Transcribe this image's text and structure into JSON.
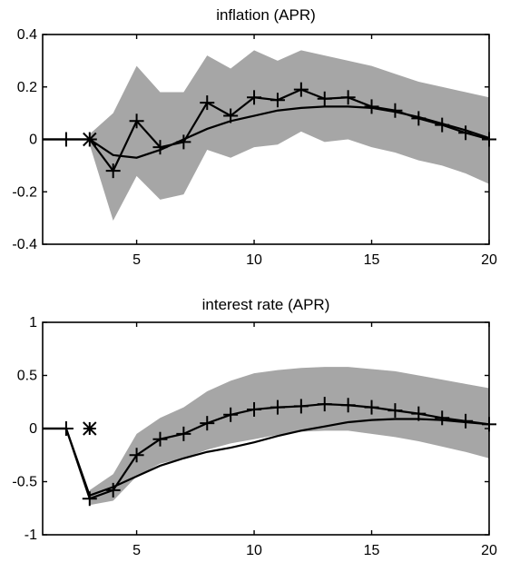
{
  "chart_data": [
    {
      "type": "line",
      "title": "inflation (APR)",
      "xlim": [
        1,
        20
      ],
      "ylim": [
        -0.4,
        0.4
      ],
      "xticks": [
        5,
        10,
        15,
        20
      ],
      "yticks": [
        -0.4,
        -0.2,
        0,
        0.2,
        0.4
      ],
      "ytick_labels": [
        "-0.4",
        "-0.2",
        "0",
        "0.2",
        "0.4"
      ],
      "band": {
        "x": [
          3,
          4,
          5,
          6,
          7,
          8,
          9,
          10,
          11,
          12,
          13,
          14,
          15,
          16,
          17,
          18,
          19,
          20
        ],
        "lower": [
          -0.02,
          -0.31,
          -0.14,
          -0.23,
          -0.21,
          -0.04,
          -0.07,
          -0.03,
          -0.02,
          0.03,
          -0.01,
          0.0,
          -0.03,
          -0.05,
          -0.08,
          -0.1,
          -0.13,
          -0.17
        ],
        "upper": [
          0.02,
          0.1,
          0.28,
          0.18,
          0.18,
          0.32,
          0.27,
          0.34,
          0.3,
          0.34,
          0.32,
          0.3,
          0.28,
          0.25,
          0.22,
          0.2,
          0.18,
          0.16
        ]
      },
      "series": [
        {
          "values": [
            [
              1,
              0
            ],
            [
              2,
              0
            ],
            [
              3,
              0
            ],
            [
              4,
              -0.06
            ],
            [
              5,
              -0.07
            ],
            [
              6,
              -0.04
            ],
            [
              7,
              0.0
            ],
            [
              8,
              0.04
            ],
            [
              9,
              0.07
            ],
            [
              10,
              0.09
            ],
            [
              11,
              0.11
            ],
            [
              12,
              0.12
            ],
            [
              13,
              0.125
            ],
            [
              14,
              0.125
            ],
            [
              15,
              0.12
            ],
            [
              16,
              0.105
            ],
            [
              17,
              0.085
            ],
            [
              18,
              0.06
            ],
            [
              19,
              0.035
            ],
            [
              20,
              0.005
            ]
          ],
          "markers": false
        },
        {
          "values": [
            [
              1,
              0
            ],
            [
              2,
              0
            ],
            [
              3,
              0
            ],
            [
              4,
              -0.12
            ],
            [
              5,
              0.07
            ],
            [
              6,
              -0.03
            ],
            [
              7,
              -0.01
            ],
            [
              8,
              0.14
            ],
            [
              9,
              0.09
            ],
            [
              10,
              0.16
            ],
            [
              11,
              0.15
            ],
            [
              12,
              0.19
            ],
            [
              13,
              0.155
            ],
            [
              14,
              0.16
            ],
            [
              15,
              0.125
            ],
            [
              16,
              0.11
            ],
            [
              17,
              0.08
            ],
            [
              18,
              0.055
            ],
            [
              19,
              0.025
            ],
            [
              20,
              0.0
            ]
          ],
          "markers": true,
          "marker_start": 2,
          "extra_markers": [
            [
              3,
              0,
              "x"
            ]
          ]
        }
      ]
    },
    {
      "type": "line",
      "title": "interest rate (APR)",
      "xlim": [
        1,
        20
      ],
      "ylim": [
        -1,
        1
      ],
      "xticks": [
        5,
        10,
        15,
        20
      ],
      "yticks": [
        -1,
        -0.5,
        0,
        0.5,
        1
      ],
      "ytick_labels": [
        "-1",
        "-0.5",
        "0",
        "0.5",
        "1"
      ],
      "band": {
        "x": [
          3,
          4,
          5,
          6,
          7,
          8,
          9,
          10,
          11,
          12,
          13,
          14,
          15,
          16,
          17,
          18,
          19,
          20
        ],
        "lower": [
          -0.72,
          -0.68,
          -0.45,
          -0.33,
          -0.28,
          -0.2,
          -0.14,
          -0.1,
          -0.06,
          -0.03,
          -0.02,
          -0.02,
          -0.05,
          -0.08,
          -0.12,
          -0.17,
          -0.22,
          -0.28
        ],
        "upper": [
          -0.58,
          -0.43,
          -0.05,
          0.1,
          0.2,
          0.35,
          0.45,
          0.52,
          0.55,
          0.57,
          0.58,
          0.58,
          0.56,
          0.54,
          0.5,
          0.46,
          0.42,
          0.38
        ]
      },
      "series": [
        {
          "values": [
            [
              1,
              0
            ],
            [
              2,
              0
            ],
            [
              3,
              -0.63
            ],
            [
              4,
              -0.55
            ],
            [
              5,
              -0.45
            ],
            [
              6,
              -0.35
            ],
            [
              7,
              -0.28
            ],
            [
              8,
              -0.22
            ],
            [
              9,
              -0.18
            ],
            [
              10,
              -0.13
            ],
            [
              11,
              -0.07
            ],
            [
              12,
              -0.02
            ],
            [
              13,
              0.02
            ],
            [
              14,
              0.06
            ],
            [
              15,
              0.08
            ],
            [
              16,
              0.09
            ],
            [
              17,
              0.09
            ],
            [
              18,
              0.08
            ],
            [
              19,
              0.06
            ],
            [
              20,
              0.04
            ]
          ],
          "markers": false
        },
        {
          "values": [
            [
              1,
              0
            ],
            [
              2,
              0
            ],
            [
              3,
              -0.66
            ],
            [
              4,
              -0.58
            ],
            [
              5,
              -0.25
            ],
            [
              6,
              -0.1
            ],
            [
              7,
              -0.05
            ],
            [
              8,
              0.05
            ],
            [
              9,
              0.13
            ],
            [
              10,
              0.18
            ],
            [
              11,
              0.2
            ],
            [
              12,
              0.21
            ],
            [
              13,
              0.23
            ],
            [
              14,
              0.22
            ],
            [
              15,
              0.2
            ],
            [
              16,
              0.17
            ],
            [
              17,
              0.14
            ],
            [
              18,
              0.1
            ],
            [
              19,
              0.07
            ],
            [
              20,
              0.04
            ]
          ],
          "markers": true,
          "marker_start": 2,
          "extra_markers": [
            [
              3,
              0,
              "star"
            ]
          ]
        }
      ]
    }
  ]
}
